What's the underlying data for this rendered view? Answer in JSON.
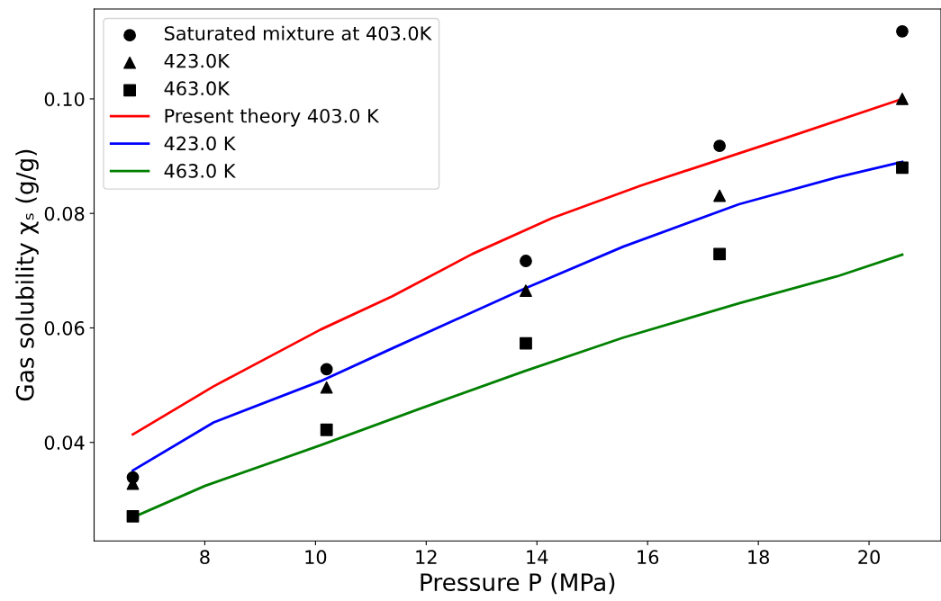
{
  "chart_data": {
    "type": "scatter",
    "xlabel": "Pressure P (MPa)",
    "ylabel": "Gas solubility χₛ (g/g)",
    "xlim": [
      6.0,
      21.3
    ],
    "ylim": [
      0.0228,
      0.1157
    ],
    "xticks": [
      8,
      10,
      12,
      14,
      16,
      18,
      20
    ],
    "yticks": [
      0.04,
      0.06,
      {
        "value": 0.08,
        "label": "0.08"
      },
      {
        "value": 0.1,
        "label": "0.10"
      }
    ],
    "grid": false,
    "legend": "top left",
    "series": [
      {
        "name": "Saturated mixture at 403.0K",
        "marker": "circle",
        "color": "#000000",
        "x": [
          6.7,
          10.2,
          13.8,
          17.3,
          20.6
        ],
        "values": [
          0.0339,
          0.0528,
          0.0717,
          0.0918,
          0.1118
        ]
      },
      {
        "name": "423.0K",
        "marker": "triangle",
        "color": "#000000",
        "x": [
          6.7,
          10.2,
          13.8,
          17.3,
          20.6
        ],
        "values": [
          0.0328,
          0.0496,
          0.0665,
          0.0831,
          0.1
        ]
      },
      {
        "name": "463.0K",
        "marker": "square",
        "color": "#000000",
        "x": [
          6.7,
          10.2,
          13.8,
          17.3,
          20.6
        ],
        "values": [
          0.0271,
          0.0422,
          0.0573,
          0.0729,
          0.088
        ]
      },
      {
        "name": "Present theory 403.0 K",
        "type": "line",
        "color": "#ff0000",
        "x": [
          6.7,
          8.16,
          10.09,
          11.38,
          12.83,
          14.28,
          15.89,
          18.47,
          20.6
        ],
        "values": [
          0.0414,
          0.0498,
          0.0597,
          0.0655,
          0.0729,
          0.0792,
          0.0849,
          0.0931,
          0.1
        ]
      },
      {
        "name": "423.0 K",
        "type": "line",
        "color": "#0000ff",
        "x": [
          6.7,
          8.16,
          10.09,
          11.38,
          13.76,
          15.56,
          17.65,
          19.42,
          20.6
        ],
        "values": [
          0.0351,
          0.0435,
          0.0507,
          0.0564,
          0.0668,
          0.0742,
          0.0816,
          0.0863,
          0.089
        ]
      },
      {
        "name": "463.0 K",
        "type": "line",
        "color": "#008000",
        "x": [
          6.7,
          8.0,
          10.09,
          11.86,
          13.76,
          15.56,
          17.65,
          19.42,
          20.6
        ],
        "values": [
          0.0269,
          0.0324,
          0.0395,
          0.0458,
          0.0524,
          0.0583,
          0.0643,
          0.069,
          0.0728
        ]
      }
    ]
  }
}
